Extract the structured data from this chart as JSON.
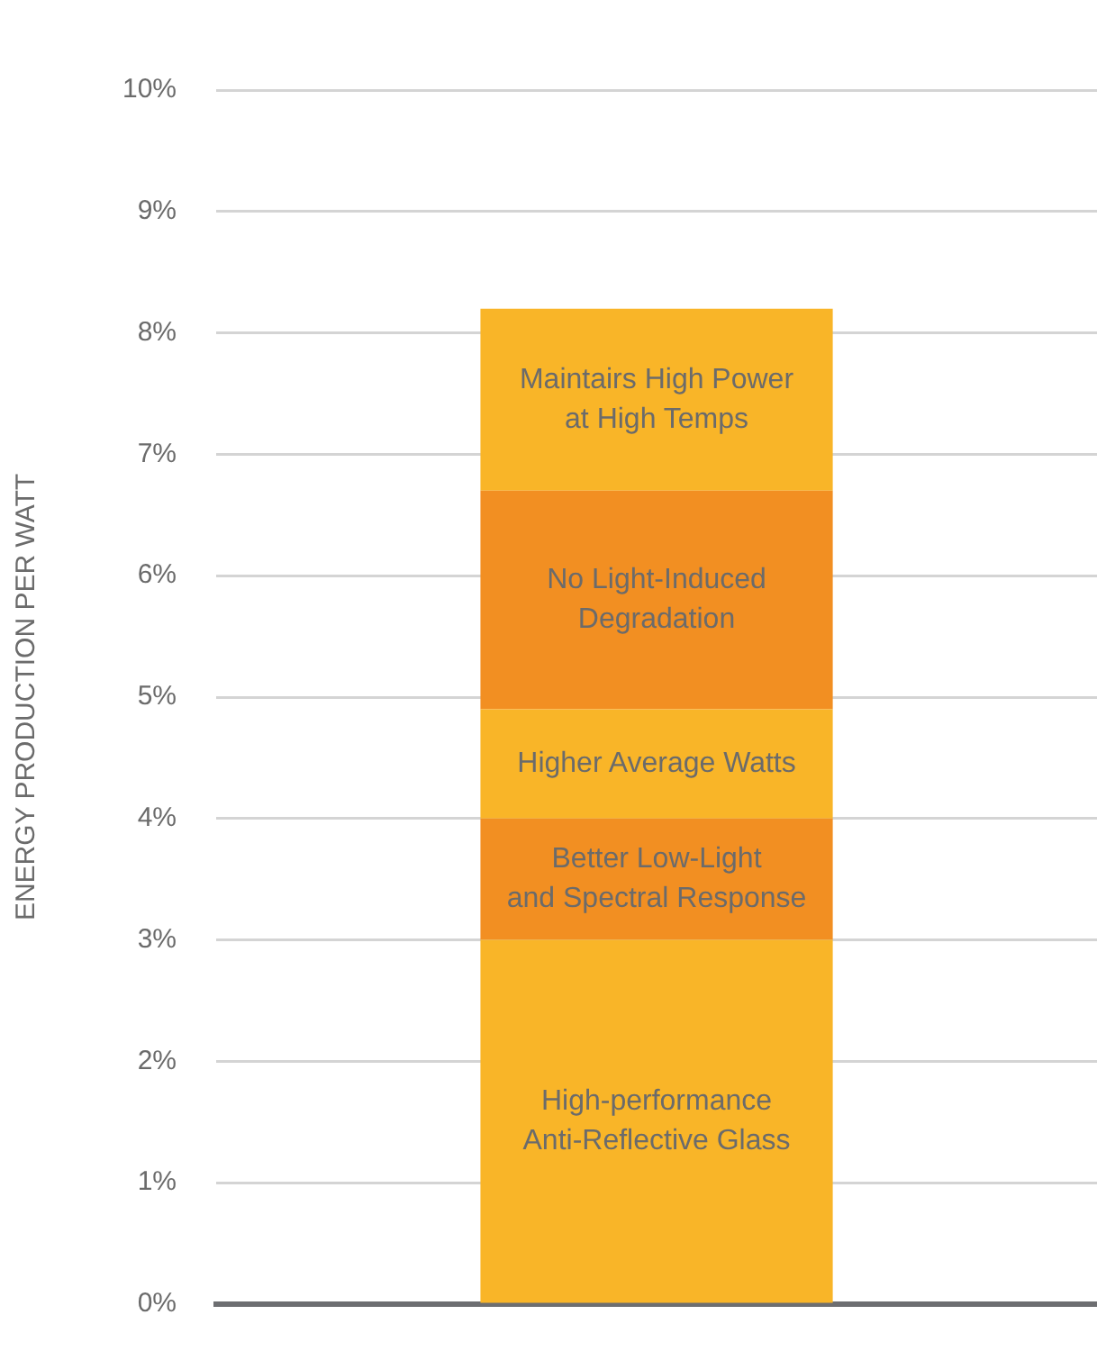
{
  "chart_data": {
    "type": "bar",
    "stacked": true,
    "ylabel": "ENERGY PRODUCTION PER WATT",
    "categories": [
      null
    ],
    "series": [
      {
        "name": "High-performance\nAnti-Reflective Glass",
        "color": "#f9b528",
        "values": [
          3.0
        ]
      },
      {
        "name": "Better Low-Light\nand Spectral Response",
        "color": "#f28f22",
        "values": [
          1.0
        ]
      },
      {
        "name": "Higher Average Watts",
        "color": "#f9b528",
        "values": [
          0.9
        ]
      },
      {
        "name": "No Light-Induced\nDegradation",
        "color": "#f28f22",
        "values": [
          1.8
        ]
      },
      {
        "name": "Maintairs High Power\nat High Temps",
        "color": "#f9b528",
        "values": [
          1.5
        ]
      }
    ],
    "ylim": [
      0,
      10
    ],
    "yticks": [
      {
        "value": 0,
        "label": "0%"
      },
      {
        "value": 1,
        "label": "1%"
      },
      {
        "value": 2,
        "label": "2%"
      },
      {
        "value": 3,
        "label": "3%"
      },
      {
        "value": 4,
        "label": "4%"
      },
      {
        "value": 5,
        "label": "5%"
      },
      {
        "value": 6,
        "label": "6%"
      },
      {
        "value": 7,
        "label": "7%"
      },
      {
        "value": 8,
        "label": "8%"
      },
      {
        "value": 9,
        "label": "9%"
      },
      {
        "value": 10,
        "label": "10%"
      }
    ],
    "grid": "y",
    "legend": false
  }
}
